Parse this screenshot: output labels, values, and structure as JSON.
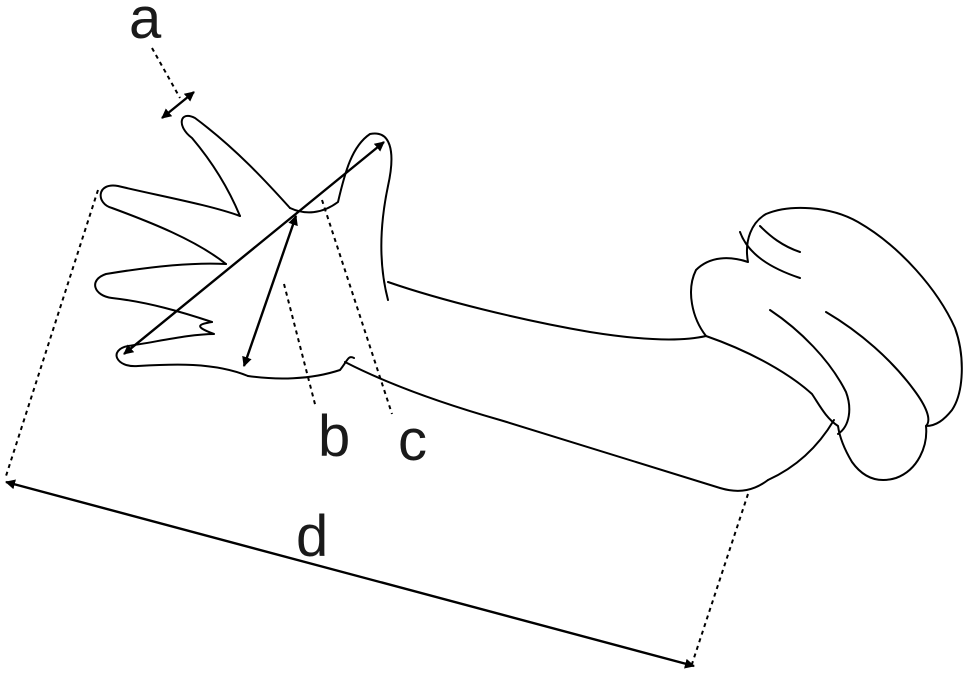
{
  "figure": {
    "subject": "glove-on-arm",
    "labels": {
      "a": "a",
      "b": "b",
      "c": "c",
      "d": "d"
    }
  }
}
